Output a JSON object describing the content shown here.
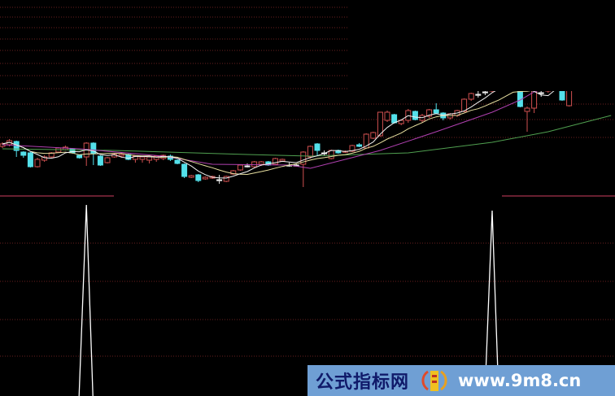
{
  "chart_data": {
    "type": "candlestick",
    "colors": {
      "up": "#d05050",
      "down": "#54e0ea",
      "grid": "#6a1f1f",
      "divider": "#8a2a40",
      "ma5": "#f0f0f0",
      "ma10": "#e8e0a0",
      "ma20": "#b040b0",
      "ma60": "#50a050",
      "signal": "#ffffff",
      "background": "#000000"
    },
    "grid": true,
    "candles": [
      [
        7.0,
        7.5,
        6.8,
        7.3
      ],
      [
        7.2,
        7.9,
        7.0,
        7.7
      ],
      [
        7.6,
        7.7,
        5.7,
        6.5
      ],
      [
        6.3,
        6.4,
        5.6,
        5.9
      ],
      [
        6.2,
        6.3,
        4.4,
        4.5
      ],
      [
        4.5,
        5.6,
        4.4,
        5.4
      ],
      [
        5.3,
        5.9,
        5.1,
        5.7
      ],
      [
        5.7,
        6.3,
        5.6,
        6.2
      ],
      [
        6.3,
        6.9,
        6.2,
        6.8
      ],
      [
        6.6,
        7.1,
        6.5,
        6.9
      ],
      [
        6.7,
        6.8,
        6.1,
        6.2
      ],
      [
        5.9,
        6.0,
        5.5,
        5.6
      ],
      [
        5.7,
        7.5,
        4.6,
        7.4
      ],
      [
        7.4,
        7.5,
        4.7,
        6.1
      ],
      [
        5.8,
        5.9,
        4.6,
        4.7
      ],
      [
        5.0,
        5.7,
        4.9,
        5.6
      ],
      [
        5.7,
        6.1,
        5.6,
        6.0
      ],
      [
        5.8,
        6.2,
        5.6,
        6.0
      ],
      [
        6.0,
        6.1,
        5.3,
        5.4
      ],
      [
        5.4,
        5.9,
        5.0,
        5.8
      ],
      [
        5.4,
        5.8,
        5.0,
        5.7
      ],
      [
        5.3,
        5.8,
        4.9,
        5.7
      ],
      [
        5.4,
        5.9,
        5.1,
        5.8
      ],
      [
        5.5,
        6.0,
        5.3,
        5.9
      ],
      [
        5.8,
        6.0,
        5.2,
        5.4
      ],
      [
        5.3,
        5.4,
        4.8,
        4.9
      ],
      [
        4.8,
        4.9,
        3.1,
        3.3
      ],
      [
        3.2,
        3.5,
        3.1,
        3.4
      ],
      [
        3.5,
        3.6,
        2.6,
        2.8
      ],
      [
        3.0,
        3.3,
        2.9,
        3.2
      ],
      [
        3.1,
        3.4,
        3.0,
        3.3
      ],
      [
        2.9,
        3.5,
        2.4,
        2.9
      ],
      [
        2.7,
        3.4,
        2.6,
        3.3
      ],
      [
        3.6,
        4.1,
        3.5,
        4.0
      ],
      [
        4.1,
        4.8,
        4.0,
        4.7
      ],
      [
        4.6,
        4.9,
        4.4,
        4.6
      ],
      [
        4.5,
        5.2,
        4.4,
        5.1
      ],
      [
        4.8,
        5.2,
        4.6,
        5.1
      ],
      [
        5.1,
        5.2,
        4.6,
        4.7
      ],
      [
        4.8,
        5.6,
        4.7,
        5.5
      ],
      [
        5.2,
        5.5,
        5.1,
        5.4
      ],
      [
        4.7,
        5.0,
        4.5,
        4.7
      ],
      [
        4.7,
        4.9,
        4.5,
        4.7
      ],
      [
        4.8,
        6.4,
        2.0,
        6.3
      ],
      [
        5.7,
        7.1,
        5.5,
        7.0
      ],
      [
        7.3,
        7.4,
        5.8,
        6.5
      ],
      [
        6.2,
        6.5,
        5.9,
        6.2
      ],
      [
        5.5,
        6.6,
        5.4,
        6.5
      ],
      [
        6.5,
        6.6,
        6.1,
        6.2
      ],
      [
        6.3,
        6.5,
        6.2,
        6.4
      ],
      [
        6.4,
        7.2,
        6.3,
        7.1
      ],
      [
        7.2,
        7.4,
        6.9,
        7.0
      ],
      [
        6.8,
        8.6,
        6.7,
        8.5
      ],
      [
        8.0,
        8.8,
        7.9,
        8.7
      ],
      [
        8.3,
        11.2,
        8.2,
        11.2
      ],
      [
        10.2,
        11.4,
        10.0,
        11.2
      ],
      [
        10.9,
        11.0,
        9.8,
        9.9
      ],
      [
        9.8,
        10.3,
        9.6,
        10.2
      ],
      [
        10.2,
        11.6,
        9.9,
        11.4
      ],
      [
        11.3,
        11.4,
        10.2,
        10.3
      ],
      [
        10.2,
        11.0,
        9.9,
        10.8
      ],
      [
        10.7,
        11.6,
        10.5,
        11.5
      ],
      [
        11.5,
        12.3,
        11.0,
        11.1
      ],
      [
        11.1,
        11.2,
        10.2,
        10.5
      ],
      [
        10.5,
        11.1,
        10.3,
        11.0
      ],
      [
        10.8,
        11.5,
        10.6,
        11.4
      ],
      [
        11.3,
        12.9,
        11.2,
        12.8
      ],
      [
        12.8,
        13.6,
        12.6,
        13.5
      ],
      [
        13.4,
        13.9,
        13.0,
        13.4
      ],
      [
        13.7,
        14.2,
        13.3,
        13.7
      ],
      [
        13.8,
        14.8,
        13.6,
        14.6
      ],
      [
        14.6,
        15.4,
        14.4,
        15.2
      ],
      [
        15.2,
        16.0,
        15.0,
        15.8
      ],
      [
        15.8,
        16.2,
        15.0,
        15.2
      ],
      [
        15.0,
        15.2,
        11.8,
        11.9
      ],
      [
        11.3,
        11.9,
        8.8,
        11.7
      ],
      [
        11.7,
        14.5,
        11.1,
        14.2
      ],
      [
        13.6,
        14.0,
        13.1,
        13.6
      ],
      [
        13.8,
        15.0,
        13.6,
        14.8
      ],
      [
        14.8,
        15.6,
        14.6,
        15.4
      ],
      [
        15.2,
        15.4,
        12.6,
        12.7
      ],
      [
        12.0,
        15.0,
        11.9,
        14.6
      ]
    ],
    "ma20": [
      [
        0,
        7.2
      ],
      [
        11,
        6.7
      ],
      [
        23,
        5.8
      ],
      [
        30,
        4.8
      ],
      [
        41,
        4.7
      ],
      [
        44,
        4.3
      ],
      [
        54,
        6.5
      ],
      [
        62,
        8.8
      ],
      [
        70,
        11.2
      ],
      [
        74,
        12.7
      ],
      [
        76,
        13.7
      ],
      [
        81,
        15.0
      ]
    ],
    "ma60": [
      [
        0,
        6.7
      ],
      [
        16,
        6.5
      ],
      [
        35,
        6.0
      ],
      [
        44,
        5.8
      ],
      [
        58,
        6.2
      ],
      [
        70,
        7.5
      ],
      [
        78,
        8.8
      ],
      [
        87,
        10.8
      ]
    ],
    "signal": [
      {
        "index": 12,
        "value": 1.0
      },
      {
        "index": 70,
        "value": 0.97
      }
    ]
  },
  "watermark": {
    "site_name": "公式指标网",
    "url": "www.9m8.cn"
  }
}
